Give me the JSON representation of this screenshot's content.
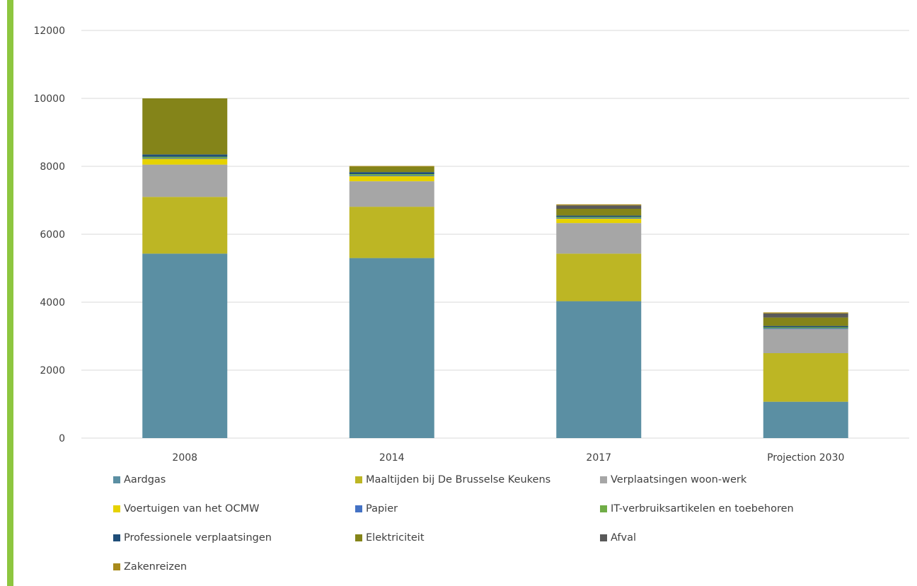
{
  "colors": {
    "accent": "#8DC63F",
    "grid": "#D9D9D9",
    "text": "#404040"
  },
  "chart_data": {
    "type": "bar",
    "stacked": true,
    "categories": [
      "2008",
      "2014",
      "2017",
      "Projection 2030"
    ],
    "ylim": [
      0,
      12000
    ],
    "yticks": [
      0,
      2000,
      4000,
      6000,
      8000,
      10000,
      12000
    ],
    "grid": true,
    "legend_position": "bottom",
    "series": [
      {
        "name": "Aardgas",
        "color": "#5B8FA3",
        "values": [
          5430,
          5300,
          4030,
          1070
        ]
      },
      {
        "name": "Maaltijden bij De Brusselse Keukens",
        "color": "#BDB624",
        "values": [
          1670,
          1510,
          1400,
          1430
        ]
      },
      {
        "name": "Verplaatsingen woon-werk",
        "color": "#A6A6A6",
        "values": [
          950,
          750,
          900,
          710
        ]
      },
      {
        "name": "Voertuigen van het OCMW",
        "color": "#E6D200",
        "values": [
          170,
          150,
          130,
          0
        ]
      },
      {
        "name": "Papier",
        "color": "#4472C4",
        "values": [
          20,
          20,
          20,
          20
        ]
      },
      {
        "name": "IT-verbruiksartikelen en toebehoren",
        "color": "#70AD47",
        "values": [
          40,
          40,
          30,
          30
        ]
      },
      {
        "name": "Professionele verplaatsingen",
        "color": "#1F4E79",
        "values": [
          70,
          60,
          40,
          40
        ]
      },
      {
        "name": "Elektriciteit",
        "color": "#848419",
        "values": [
          1650,
          160,
          200,
          250
        ]
      },
      {
        "name": "Afval",
        "color": "#595959",
        "values": [
          0,
          0,
          100,
          120
        ]
      },
      {
        "name": "Zakenreizen",
        "color": "#A88A1B",
        "values": [
          0,
          20,
          30,
          30
        ]
      }
    ]
  }
}
